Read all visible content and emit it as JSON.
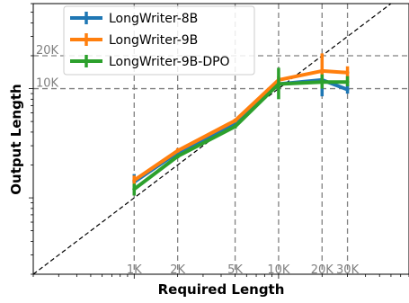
{
  "chart_data": {
    "type": "line",
    "title": "",
    "xlabel": "Required Length",
    "ylabel": "Output Length",
    "xscale": "log",
    "yscale": "log",
    "xlim": [
      200,
      80000
    ],
    "ylim": [
      200,
      60000
    ],
    "x": [
      1000,
      2000,
      5000,
      10000,
      20000,
      30000
    ],
    "reference_lines": {
      "vertical": [
        {
          "x": 1000,
          "label": "1K"
        },
        {
          "x": 2000,
          "label": "2K"
        },
        {
          "x": 5000,
          "label": "5K"
        },
        {
          "x": 10000,
          "label": "10K"
        },
        {
          "x": 20000,
          "label": "20K"
        },
        {
          "x": 30000,
          "label": "30K"
        }
      ],
      "horizontal": [
        {
          "y": 20000,
          "label": "20K"
        },
        {
          "y": 10000,
          "label": "10K"
        }
      ],
      "diagonal": "y = x"
    },
    "legend_position": "top-left",
    "series": [
      {
        "name": "LongWriter-8B",
        "color": "#1f77b4",
        "values": [
          1400,
          2600,
          4800,
          11000,
          12000,
          9800
        ],
        "err_low": [
          1250,
          2500,
          4600,
          9800,
          8500,
          9000
        ],
        "err_high": [
          1650,
          2750,
          5100,
          12300,
          13500,
          11000
        ]
      },
      {
        "name": "LongWriter-9B",
        "color": "#ff7f0e",
        "values": [
          1450,
          2700,
          5100,
          12000,
          14500,
          14000
        ],
        "err_low": [
          1300,
          2600,
          4900,
          11000,
          12500,
          11800
        ],
        "err_high": [
          1600,
          2850,
          5300,
          13000,
          21000,
          16000
        ]
      },
      {
        "name": "LongWriter-9B-DPO",
        "color": "#2ca02c",
        "values": [
          1200,
          2400,
          4500,
          11000,
          11500,
          11500
        ],
        "err_low": [
          1050,
          2300,
          4300,
          8000,
          10000,
          10500
        ],
        "err_high": [
          1350,
          2500,
          4700,
          15500,
          13500,
          13000
        ]
      }
    ]
  }
}
